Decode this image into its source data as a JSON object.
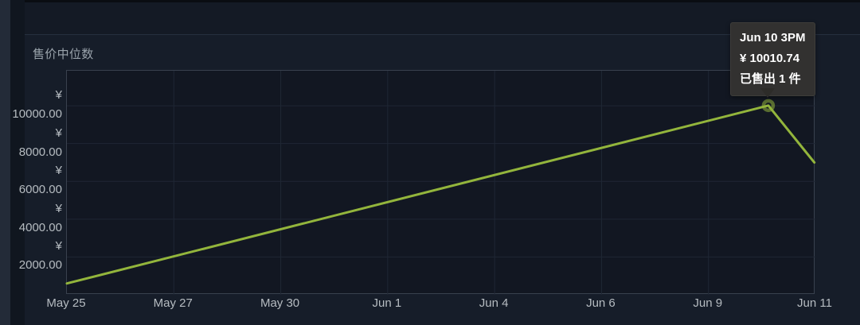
{
  "chart_data": {
    "type": "line",
    "title": "售价中位数",
    "currency": "¥",
    "x_tick_labels": [
      "May 25",
      "May 27",
      "May 30",
      "Jun 1",
      "Jun 4",
      "Jun 6",
      "Jun 9",
      "Jun 11"
    ],
    "y_tick_values": [
      2000,
      4000,
      6000,
      8000,
      10000
    ],
    "xlim": [
      0,
      7
    ],
    "ylim": [
      0,
      11853
    ],
    "grid": true,
    "legend": "none",
    "series": [
      {
        "name": "售价中位数",
        "color": "#93b53c",
        "points": [
          {
            "x": 0.0,
            "value": 600
          },
          {
            "x": 6.56,
            "value": 10010.74
          },
          {
            "x": 6.99,
            "value": 7000
          }
        ]
      }
    ],
    "highlight": {
      "series": 0,
      "point": 1,
      "marker": "ring"
    },
    "tooltip": {
      "time": "Jun 10 3PM",
      "price": "¥ 10010.74",
      "sold": "已售出 1 件"
    }
  },
  "colors": {
    "background": "#161d29",
    "plot_background": "#121722",
    "grid_line": "#1f2734",
    "plot_border": "#39414e",
    "line_green": "#93b53c",
    "tooltip_background": "#323130",
    "axis_text": "#b6bcc1",
    "title_text": "#9aa3ab"
  }
}
